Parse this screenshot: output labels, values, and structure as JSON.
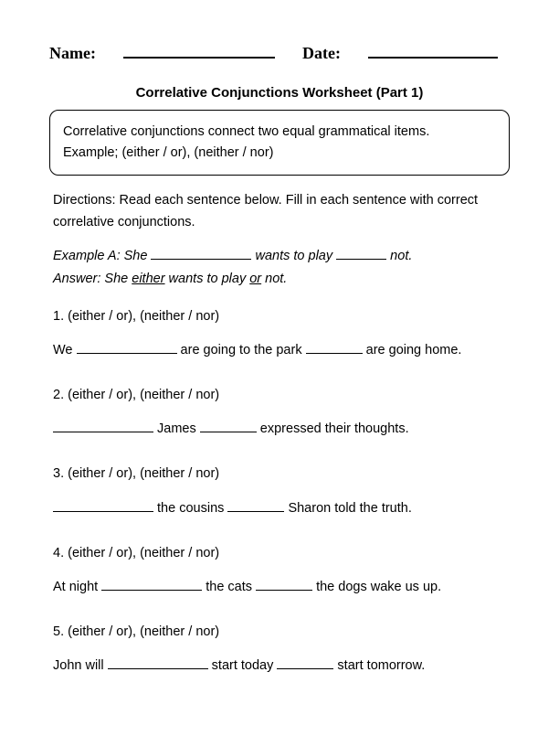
{
  "header": {
    "name_label": "Name:",
    "date_label": "Date:"
  },
  "title": "Correlative Conjunctions Worksheet (Part 1)",
  "intro_box": {
    "line1": "Correlative conjunctions connect two equal grammatical items.",
    "line2": "Example; (either / or), (neither / nor)"
  },
  "directions": "Directions: Read each sentence below. Fill in each sentence with correct correlative conjunctions.",
  "example": {
    "q_prefix": "Example A: She ",
    "q_mid": " wants to play ",
    "q_suffix": " not.",
    "a_prefix": "Answer: She ",
    "a_word1": "either",
    "a_mid": " wants to play ",
    "a_word2": "or",
    "a_suffix": " not."
  },
  "questions": [
    {
      "num": "1.",
      "options": "(either / or), (neither / nor)",
      "parts": [
        "We ",
        " are going to the park ",
        " are going home."
      ]
    },
    {
      "num": "2.",
      "options": "(either / or), (neither / nor)",
      "parts": [
        "",
        " James ",
        " expressed their thoughts."
      ]
    },
    {
      "num": "3.",
      "options": "(either / or), (neither / nor)",
      "parts": [
        "",
        " the cousins ",
        " Sharon told the truth."
      ]
    },
    {
      "num": "4.",
      "options": "(either / or), (neither / nor)",
      "parts": [
        "At night ",
        " the cats ",
        " the dogs wake us up."
      ]
    },
    {
      "num": "5.",
      "options": "(either / or), (neither / nor)",
      "parts": [
        "John will ",
        " start today ",
        " start tomorrow."
      ]
    }
  ],
  "blank_widths": {
    "long": 110,
    "short": 62
  }
}
